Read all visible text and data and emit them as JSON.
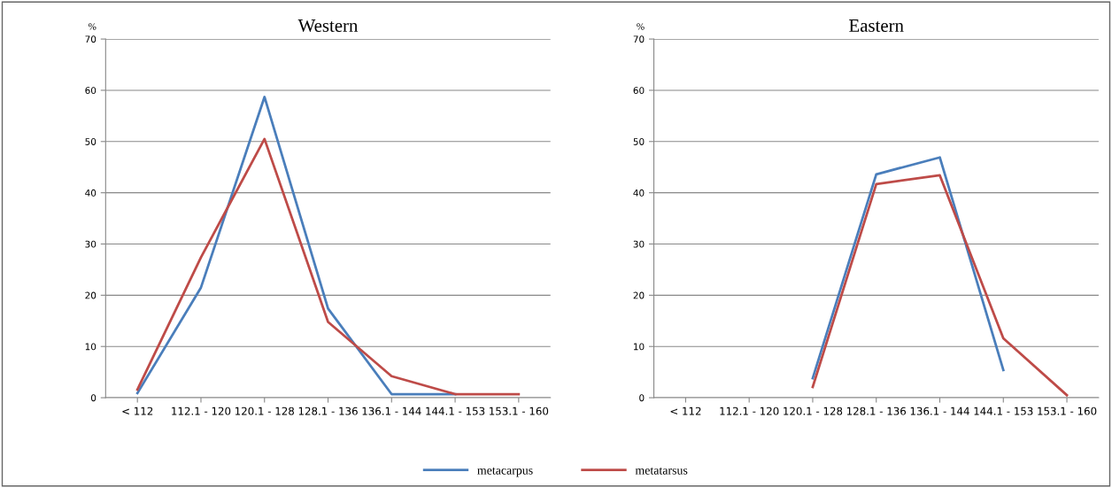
{
  "chart_data": [
    {
      "type": "line",
      "title": "Western",
      "ylabel": "%",
      "categories": [
        "< 112",
        "112.1 - 120",
        "120.1 - 128",
        "128.1 - 136",
        "136.1 - 144",
        "144.1 - 153",
        "153.1 - 160"
      ],
      "ylim": [
        0,
        70
      ],
      "yticks": [
        0,
        10,
        20,
        30,
        40,
        50,
        60,
        70
      ],
      "grid": "y",
      "legend": "bottom",
      "series": [
        {
          "name": "metacarpus",
          "color": "#4a7ebb",
          "values": [
            0.9,
            21.5,
            58.7,
            17.4,
            0.7,
            0.7,
            null
          ]
        },
        {
          "name": "metatarsus",
          "color": "#be4b48",
          "values": [
            1.6,
            27.4,
            50.5,
            14.8,
            4.2,
            0.7,
            0.7
          ]
        }
      ]
    },
    {
      "type": "line",
      "title": "Eastern",
      "ylabel": "%",
      "categories": [
        "< 112",
        "112.1 - 120",
        "120.1 - 128",
        "128.1 - 136",
        "136.1 - 144",
        "144.1 - 153",
        "153.1 - 160"
      ],
      "ylim": [
        0,
        70
      ],
      "yticks": [
        0,
        10,
        20,
        30,
        40,
        50,
        60,
        70
      ],
      "grid": "y",
      "series": [
        {
          "color": "#4a7ebb",
          "values": [
            null,
            null,
            3.8,
            43.6,
            46.9,
            5.4,
            null
          ]
        },
        {
          "color": "#be4b48",
          "values": [
            null,
            null,
            2.1,
            41.7,
            43.4,
            11.6,
            0.5
          ]
        }
      ]
    }
  ]
}
